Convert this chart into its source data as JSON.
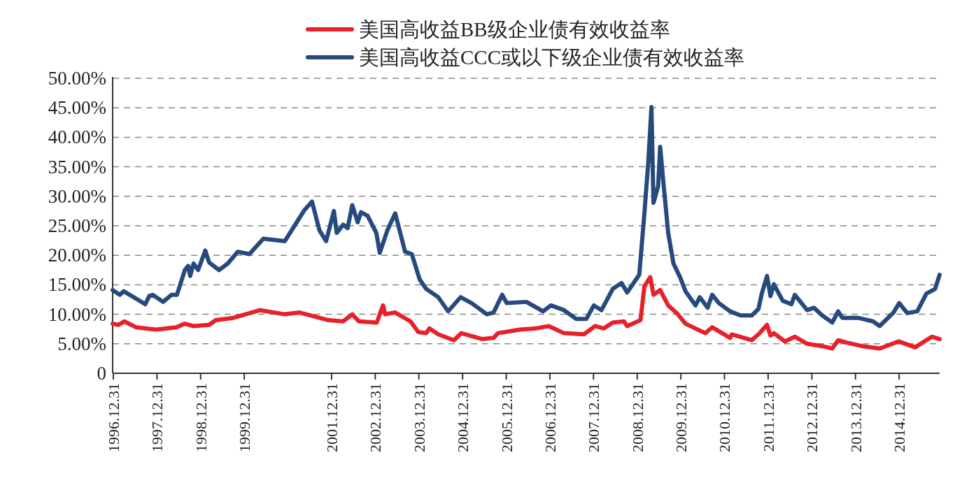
{
  "chart_data": {
    "type": "line",
    "legend": "top",
    "grid": "y",
    "marker": "none",
    "line_style": "solid",
    "xlim": [
      "1996-12-25",
      "2015-12-05"
    ],
    "ylim": [
      0,
      50
    ],
    "xticks": [
      {
        "value": "1996-12-31",
        "label": "1996.12.31"
      },
      {
        "value": "1997-12-31",
        "label": "1997.12.31"
      },
      {
        "value": "1998-12-31",
        "label": "1998.12.31"
      },
      {
        "value": "1999-12-31",
        "label": "1999.12.31"
      },
      {
        "value": "2001-12-31",
        "label": "2001.12.31"
      },
      {
        "value": "2002-12-31",
        "label": "2002.12.31"
      },
      {
        "value": "2003-12-31",
        "label": "2003.12.31"
      },
      {
        "value": "2004-12-31",
        "label": "2004.12.31"
      },
      {
        "value": "2005-12-31",
        "label": "2005.12.31"
      },
      {
        "value": "2006-12-31",
        "label": "2006.12.31"
      },
      {
        "value": "2007-12-31",
        "label": "2007.12.31"
      },
      {
        "value": "2008-12-31",
        "label": "2008.12.31"
      },
      {
        "value": "2009-12-31",
        "label": "2009.12.31"
      },
      {
        "value": "2010-12-31",
        "label": "2010.12.31"
      },
      {
        "value": "2011-12-31",
        "label": "2011.12.31"
      },
      {
        "value": "2012-12-31",
        "label": "2012.12.31"
      },
      {
        "value": "2013-12-31",
        "label": "2013.12.31"
      },
      {
        "value": "2014-12-31",
        "label": "2014.12.31"
      }
    ],
    "yticks": [
      {
        "value": 0,
        "label": "0"
      },
      {
        "value": 5,
        "label": "5.00%"
      },
      {
        "value": 10,
        "label": "10.00%"
      },
      {
        "value": 15,
        "label": "15.00%"
      },
      {
        "value": 20,
        "label": "20.00%"
      },
      {
        "value": 25,
        "label": "25.00%"
      },
      {
        "value": 30,
        "label": "30.00%"
      },
      {
        "value": 35,
        "label": "35.00%"
      },
      {
        "value": 40,
        "label": "40.00%"
      },
      {
        "value": 45,
        "label": "45.00%"
      },
      {
        "value": 50,
        "label": "50.00%"
      }
    ],
    "series": [
      {
        "name": "美国高收益BB级企业债有效收益率",
        "color": "#e8202a",
        "x": [
          "1996-12-25",
          "1997-02-13",
          "1997-04-01",
          "1997-07-09",
          "1997-12-22",
          "1998-06-09",
          "1998-08-21",
          "1998-11-02",
          "1999-03-12",
          "1999-05-06",
          "1999-10-02",
          "2000-05-11",
          "2000-12-05",
          "2001-04-07",
          "2001-12-06",
          "2002-04-07",
          "2002-06-22",
          "2002-08-16",
          "2003-01-13",
          "2003-02-10",
          "2003-03-07",
          "2003-03-24",
          "2003-06-16",
          "2003-10-22",
          "2003-12-26",
          "2004-03-01",
          "2004-03-28",
          "2004-06-10",
          "2004-10-19",
          "2004-12-20",
          "2005-06-14",
          "2005-09-16",
          "2005-10-23",
          "2006-04-24",
          "2006-09-03",
          "2006-12-22",
          "2007-04-28",
          "2007-10-11",
          "2008-01-13",
          "2008-03-25",
          "2008-06-09",
          "2008-09-11",
          "2008-10-08",
          "2009-01-27",
          "2009-03-01",
          "2009-04-19",
          "2009-05-16",
          "2009-07-11",
          "2009-09-16",
          "2009-11-27",
          "2010-02-08",
          "2010-05-03",
          "2010-05-21",
          "2010-07-25",
          "2010-09-19",
          "2011-02-16",
          "2011-03-03",
          "2011-08-16",
          "2011-10-21",
          "2011-12-22",
          "2012-01-20",
          "2012-02-17",
          "2012-05-19",
          "2012-08-10",
          "2012-11-22",
          "2013-03-28",
          "2013-06-20",
          "2013-08-08",
          "2013-10-19",
          "2014-02-25",
          "2014-07-22",
          "2014-12-28",
          "2015-05-14",
          "2015-09-30",
          "2015-12-05"
        ],
        "values": [
          8.4,
          8.2,
          8.8,
          7.8,
          7.4,
          7.8,
          8.4,
          8.0,
          8.2,
          9.0,
          9.4,
          10.7,
          10.0,
          10.3,
          9.0,
          8.8,
          10.0,
          8.8,
          8.6,
          10.2,
          11.5,
          10.0,
          10.3,
          8.8,
          7.0,
          6.8,
          7.6,
          6.6,
          5.6,
          6.8,
          5.8,
          6.0,
          6.8,
          7.4,
          7.6,
          8.0,
          6.8,
          6.6,
          8.0,
          7.6,
          8.6,
          8.8,
          8.0,
          9.0,
          14.7,
          16.3,
          13.3,
          14.1,
          11.5,
          10.2,
          8.4,
          7.6,
          7.4,
          6.8,
          7.8,
          6.0,
          6.6,
          5.6,
          6.8,
          8.2,
          6.4,
          6.8,
          5.4,
          6.2,
          5.0,
          4.6,
          4.2,
          5.6,
          5.2,
          4.6,
          4.2,
          5.4,
          4.4,
          6.2,
          5.8
        ]
      },
      {
        "name": "美国高收益CCC或以下级企业债有效收益率",
        "color": "#264a7e",
        "x": [
          "1996-12-25",
          "1997-02-23",
          "1997-03-27",
          "1997-06-19",
          "1997-09-24",
          "1997-10-28",
          "1997-11-25",
          "1998-02-20",
          "1998-05-02",
          "1998-06-16",
          "1998-08-21",
          "1998-09-18",
          "1998-10-05",
          "1998-11-02",
          "1998-12-10",
          "1999-02-08",
          "1999-03-12",
          "1999-06-03",
          "1999-08-15",
          "1999-11-07",
          "2000-02-12",
          "2000-06-08",
          "2000-12-05",
          "2001-05-19",
          "2001-07-20",
          "2001-09-21",
          "2001-11-15",
          "2002-01-19",
          "2002-02-12",
          "2002-04-07",
          "2002-05-14",
          "2002-06-22",
          "2002-08-06",
          "2002-09-03",
          "2002-10-28",
          "2003-01-09",
          "2003-02-07",
          "2003-04-11",
          "2003-06-16",
          "2003-09-07",
          "2003-11-02",
          "2004-01-07",
          "2004-03-01",
          "2004-06-10",
          "2004-09-01",
          "2004-12-14",
          "2005-03-16",
          "2005-07-22",
          "2005-09-16",
          "2005-11-27",
          "2006-01-04",
          "2006-06-18",
          "2006-11-04",
          "2007-01-09",
          "2007-04-28",
          "2007-08-10",
          "2007-11-01",
          "2008-01-03",
          "2008-03-07",
          "2008-06-09",
          "2008-08-21",
          "2008-10-08",
          "2009-01-17",
          "2009-02-25",
          "2009-04-02",
          "2009-04-29",
          "2009-05-16",
          "2009-06-24",
          "2009-07-11",
          "2009-08-08",
          "2009-09-16",
          "2009-10-30",
          "2009-12-24",
          "2010-02-08",
          "2010-05-03",
          "2010-06-07",
          "2010-08-12",
          "2010-09-19",
          "2010-11-14",
          "2011-02-16",
          "2011-05-14",
          "2011-08-16",
          "2011-10-11",
          "2011-11-08",
          "2011-12-22",
          "2012-01-20",
          "2012-02-17",
          "2012-05-01",
          "2012-07-13",
          "2012-08-10",
          "2012-11-22",
          "2013-01-17",
          "2013-03-28",
          "2013-06-20",
          "2013-08-08",
          "2013-09-12",
          "2014-01-21",
          "2014-05-27",
          "2014-07-22",
          "2014-11-14",
          "2015-01-01",
          "2015-03-09",
          "2015-06-01",
          "2015-08-16",
          "2015-10-28",
          "2015-12-05"
        ],
        "values": [
          14.1,
          13.3,
          13.9,
          12.9,
          11.7,
          13.1,
          13.3,
          12.1,
          13.3,
          13.3,
          17.5,
          18.2,
          16.5,
          18.6,
          17.5,
          20.8,
          18.8,
          17.5,
          18.6,
          20.6,
          20.2,
          22.8,
          22.4,
          27.7,
          29.1,
          24.2,
          22.4,
          27.5,
          23.8,
          25.2,
          24.6,
          28.5,
          25.6,
          27.3,
          26.7,
          23.8,
          20.4,
          24.2,
          27.1,
          20.6,
          20.2,
          15.9,
          14.3,
          12.9,
          10.5,
          12.9,
          11.9,
          10.0,
          10.3,
          13.3,
          11.9,
          12.1,
          10.5,
          11.5,
          10.7,
          9.2,
          9.2,
          11.5,
          10.7,
          14.3,
          15.3,
          13.7,
          16.7,
          26.1,
          35.6,
          45.1,
          28.9,
          31.7,
          38.4,
          32.1,
          23.8,
          18.6,
          16.3,
          13.9,
          11.5,
          12.9,
          11.1,
          13.3,
          11.9,
          10.5,
          9.8,
          9.8,
          10.9,
          13.5,
          16.5,
          13.1,
          15.1,
          12.3,
          11.7,
          13.3,
          10.7,
          11.1,
          9.8,
          8.6,
          10.5,
          9.4,
          9.4,
          8.8,
          8.0,
          10.3,
          11.9,
          10.2,
          10.5,
          13.5,
          14.3,
          16.7
        ]
      }
    ]
  }
}
